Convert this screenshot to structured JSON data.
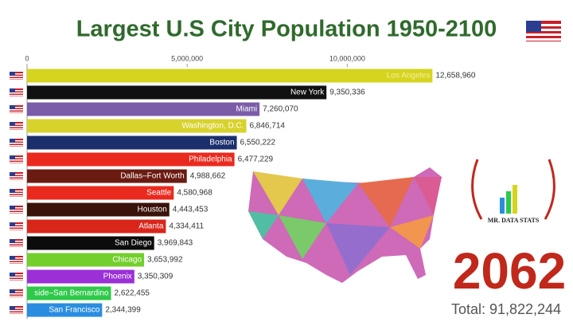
{
  "chart_data": {
    "type": "bar",
    "orientation": "horizontal",
    "title": "Largest U.S City Population 1950-2100",
    "categories": [
      "Los Angeles",
      "New York",
      "Miami",
      "Washington, D.C.",
      "Boston",
      "Philadelphia",
      "Dallas–Fort Worth",
      "Seattle",
      "Houston",
      "Atlanta",
      "San Diego",
      "Chicago",
      "Phoenix",
      "side–San Bernardino",
      "San Francisco"
    ],
    "values": [
      12658960,
      9350336,
      7260070,
      6846714,
      6550222,
      6477229,
      4988662,
      4580968,
      4443453,
      4334411,
      3969843,
      3653992,
      3350309,
      2622455,
      2344399
    ],
    "value_labels": [
      "12,658,960",
      "9,350,336",
      "7,260,070",
      "6,846,714",
      "6,550,222",
      "6,477,229",
      "4,988,662",
      "4,580,968",
      "4,443,453",
      "4,334,411",
      "3,969,843",
      "3,653,992",
      "3,350,309",
      "2,622,455",
      "2,344,399"
    ],
    "colors": [
      "#d6d41e",
      "#111111",
      "#7b5ca8",
      "#d8d22c",
      "#1b2f6c",
      "#ea2a1e",
      "#6b1c12",
      "#ea2a1e",
      "#3a1209",
      "#d9261b",
      "#0c0c0c",
      "#72cf2c",
      "#9b30d6",
      "#2fc94a",
      "#2a8de0"
    ],
    "xlim": [
      0,
      17000000
    ],
    "xticks": [
      {
        "value": 0,
        "label": "0"
      },
      {
        "value": 5000000,
        "label": "5,000,000"
      },
      {
        "value": 10000000,
        "label": "10,000,000"
      }
    ],
    "year": "2062",
    "total": "Total: 91,822,244",
    "logo_text": "MR. DATA STATS"
  }
}
